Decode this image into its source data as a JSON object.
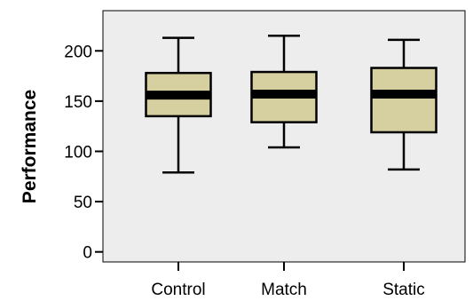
{
  "chart_data": {
    "type": "boxplot",
    "title": "",
    "xlabel": "",
    "ylabel": "Performance",
    "ylim": [
      -10,
      240
    ],
    "yticks": [
      0,
      50,
      100,
      150,
      200
    ],
    "grid": false,
    "legend": "none",
    "categories": [
      "Control",
      "Match",
      "Static"
    ],
    "boxes": [
      {
        "category": "Control",
        "min": 79,
        "q1": 135,
        "median": 156,
        "q3": 178,
        "max": 213
      },
      {
        "category": "Match",
        "min": 104,
        "q1": 129,
        "median": 157,
        "q3": 179,
        "max": 215
      },
      {
        "category": "Static",
        "min": 82,
        "q1": 119,
        "median": 157,
        "q3": 183,
        "max": 211
      }
    ],
    "colors": {
      "box_fill": "#d6cf9f",
      "median_line": "#000000",
      "plot_background": "#ededed",
      "stroke": "#000000"
    }
  }
}
